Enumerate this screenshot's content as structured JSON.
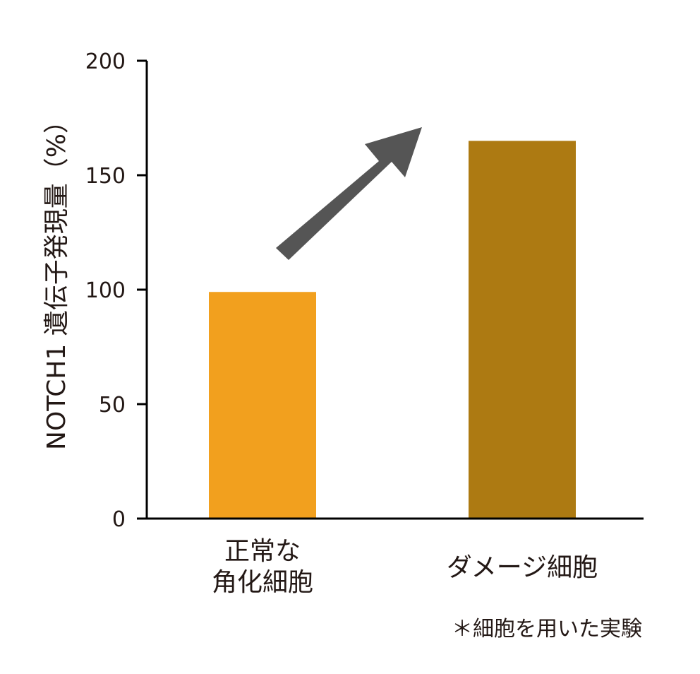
{
  "chart_data": {
    "type": "bar",
    "ylabel": "NOTCH1 遺伝子発現量（%）",
    "xlabel": "",
    "ylim": [
      0,
      200
    ],
    "yticks": [
      0,
      50,
      100,
      150,
      200
    ],
    "categories": [
      [
        "正常な",
        "角化細胞"
      ],
      [
        "ダメージ細胞"
      ]
    ],
    "values": [
      99,
      165
    ],
    "bar_colors": [
      "#f2a01e",
      "#ad7a12"
    ],
    "annotation_arrow": {
      "color": "#555555",
      "meaning": "increase"
    },
    "note": "＊細胞を用いた実験"
  }
}
